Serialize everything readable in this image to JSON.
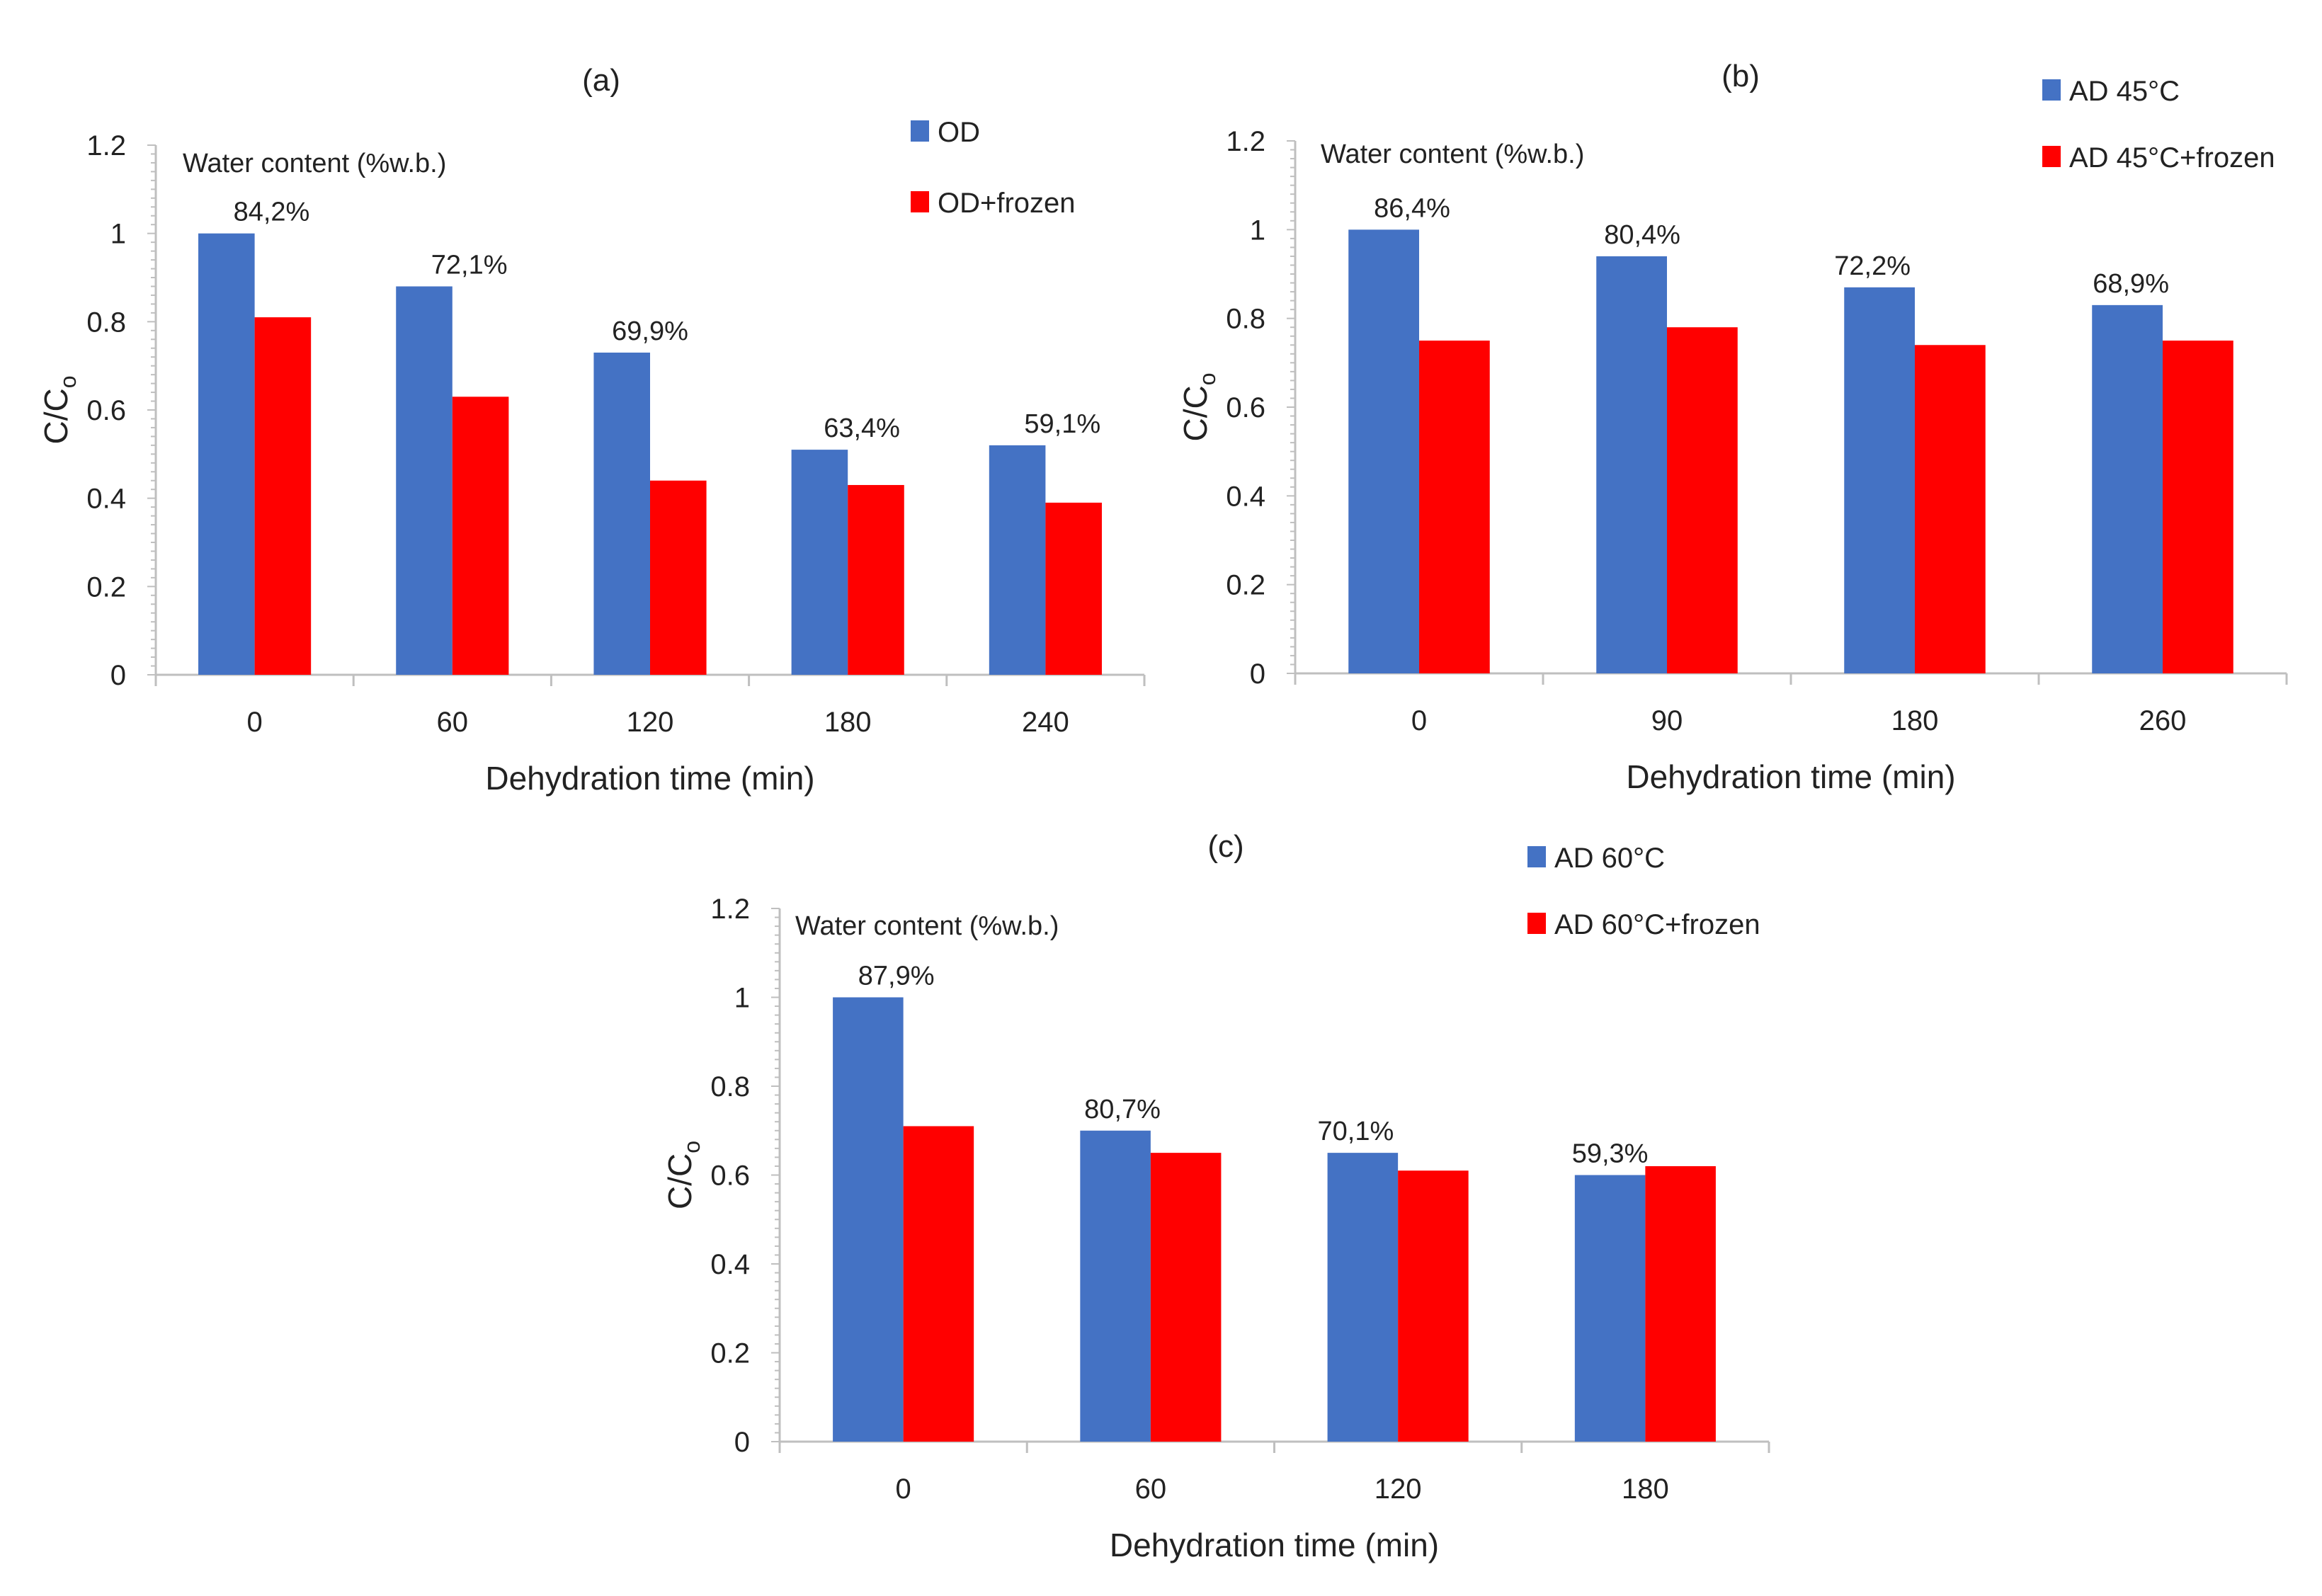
{
  "colors": {
    "series1": "#4472C4",
    "series2": "#FF0000",
    "axis": "#BFBFBF"
  },
  "chart_data": [
    {
      "type": "bar",
      "title": "(a)",
      "xlabel": "Dehydration time (min)",
      "ylabel": "C/C",
      "ylabel_sub": "o",
      "ylim": [
        0,
        1.2
      ],
      "yticks": [
        "0",
        "0.2",
        "0.4",
        "0.6",
        "0.8",
        "1",
        "1.2"
      ],
      "categories": [
        "0",
        "60",
        "120",
        "180",
        "240"
      ],
      "annotation_title": "Water content (%w.b.)",
      "annotations": [
        "84,2%",
        "72,1%",
        "69,9%",
        "63,4%",
        "59,1%"
      ],
      "series": [
        {
          "name": "OD",
          "values": [
            1.0,
            0.88,
            0.73,
            0.51,
            0.52
          ]
        },
        {
          "name": "OD+frozen",
          "values": [
            0.81,
            0.63,
            0.44,
            0.43,
            0.39
          ]
        }
      ],
      "legend": "top-right"
    },
    {
      "type": "bar",
      "title": "(b)",
      "xlabel": "Dehydration time (min)",
      "ylabel": "C/C",
      "ylabel_sub": "o",
      "ylim": [
        0,
        1.2
      ],
      "yticks": [
        "0",
        "0.2",
        "0.4",
        "0.6",
        "0.8",
        "1",
        "1.2"
      ],
      "categories": [
        "0",
        "90",
        "180",
        "260"
      ],
      "annotation_title": "Water content (%w.b.)",
      "annotations": [
        "86,4%",
        "80,4%",
        "72,2%",
        "68,9%"
      ],
      "series": [
        {
          "name": "AD 45°C",
          "values": [
            1.0,
            0.94,
            0.87,
            0.83
          ]
        },
        {
          "name": "AD 45°C+frozen",
          "values": [
            0.75,
            0.78,
            0.74,
            0.75
          ]
        }
      ],
      "legend": "top-right"
    },
    {
      "type": "bar",
      "title": "(c)",
      "xlabel": "Dehydration time (min)",
      "ylabel": "C/C",
      "ylabel_sub": "o",
      "ylim": [
        0,
        1.2
      ],
      "yticks": [
        "0",
        "0.2",
        "0.4",
        "0.6",
        "0.8",
        "1",
        "1.2"
      ],
      "categories": [
        "0",
        "60",
        "120",
        "180"
      ],
      "annotation_title": "Water content (%w.b.)",
      "annotations": [
        "87,9%",
        "80,7%",
        "70,1%",
        "59,3%"
      ],
      "series": [
        {
          "name": "AD 60°C",
          "values": [
            1.0,
            0.7,
            0.65,
            0.6
          ]
        },
        {
          "name": "AD 60°C+frozen",
          "values": [
            0.71,
            0.65,
            0.61,
            0.62
          ]
        }
      ],
      "legend": "top-right"
    }
  ]
}
